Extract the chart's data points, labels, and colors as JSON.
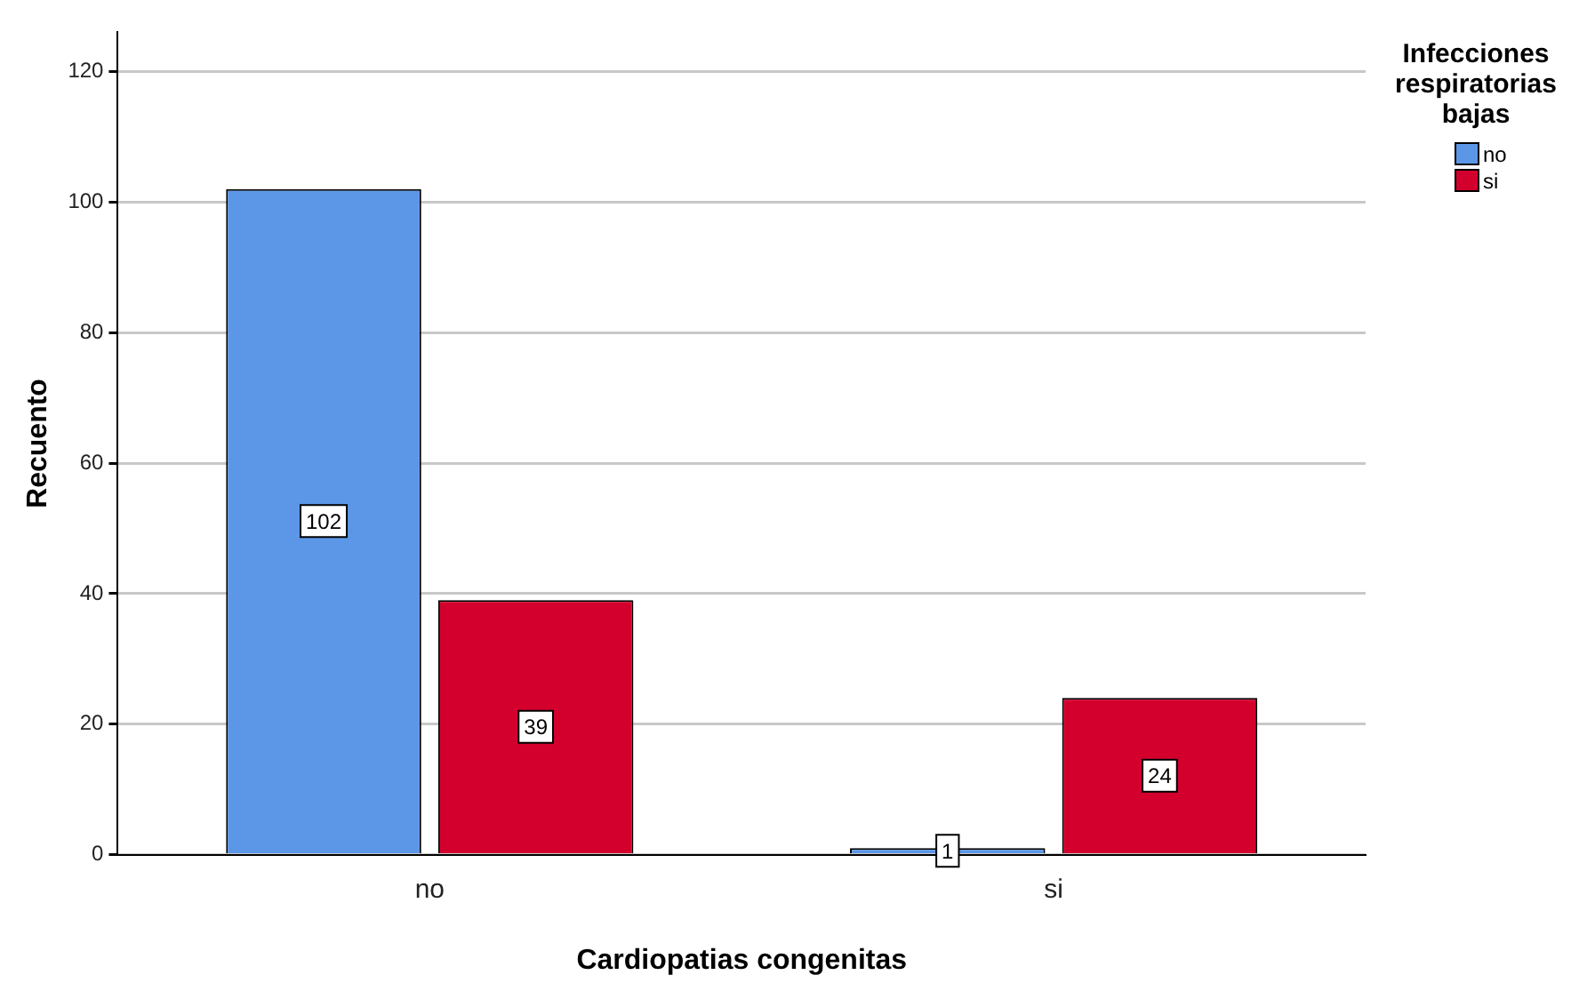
{
  "chart_data": {
    "type": "bar",
    "xlabel": "Cardiopatias congenitas",
    "ylabel": "Recuento",
    "legend_title": "Infecciones respiratorias bajas",
    "categories": [
      "no",
      "si"
    ],
    "series": [
      {
        "name": "no",
        "color": "#5b97e6",
        "values": [
          102,
          1
        ]
      },
      {
        "name": "si",
        "color": "#d3002e",
        "values": [
          39,
          24
        ]
      }
    ],
    "ylim": [
      0,
      126
    ],
    "yticks": [
      0,
      20,
      40,
      60,
      80,
      100,
      120
    ],
    "grid": "y",
    "legend": "top right",
    "data_labels": true
  }
}
